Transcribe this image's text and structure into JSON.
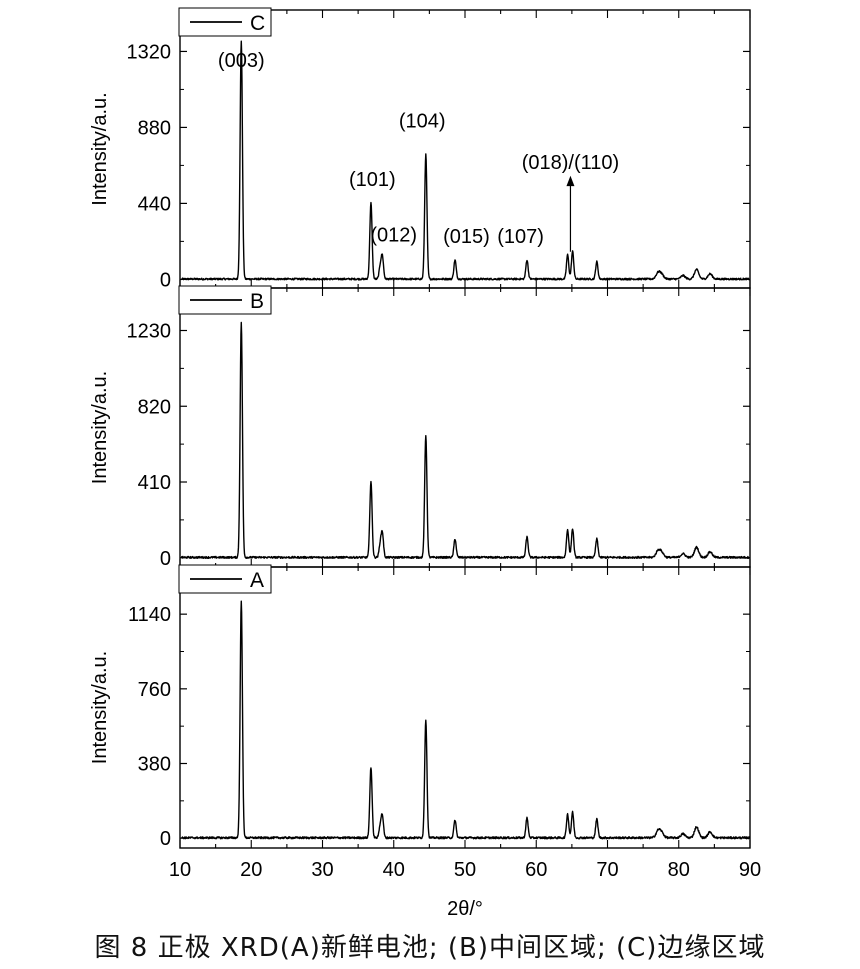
{
  "chart_data": {
    "type": "line",
    "xlabel": "2θ/°",
    "ylabel": "Intensity/a.u.",
    "xlim": [
      10,
      90
    ],
    "xticks": [
      "10",
      "20",
      "30",
      "40",
      "50",
      "60",
      "70",
      "80",
      "90"
    ],
    "legend_position": "top-left",
    "grid": false,
    "color": "#000000",
    "peaks_2theta": [
      18.6,
      36.8,
      38.1,
      38.4,
      44.5,
      48.6,
      58.7,
      64.4,
      65.1,
      68.5,
      77.1,
      77.6,
      80.6,
      82.5,
      84.4
    ],
    "panels": [
      {
        "legend": "C",
        "yticks": [
          "0",
          "440",
          "880",
          "1320"
        ],
        "ylim": [
          -50,
          1560
        ],
        "peak_heights": [
          1380,
          440,
          70,
          130,
          720,
          110,
          110,
          140,
          160,
          100,
          35,
          25,
          20,
          55,
          30
        ],
        "annotations": [
          {
            "text": "(003)",
            "x": 18.6,
            "y": 1230
          },
          {
            "text": "(101)",
            "x": 37.0,
            "y": 540
          },
          {
            "text": "(012)",
            "x": 40.0,
            "y": 220
          },
          {
            "text": "(104)",
            "x": 44.0,
            "y": 880
          },
          {
            "text": "(015)",
            "x": 50.2,
            "y": 210
          },
          {
            "text": "(107)",
            "x": 57.8,
            "y": 210
          },
          {
            "text": "(018)/(110)",
            "x": 64.8,
            "y": 640
          }
        ]
      },
      {
        "legend": "B",
        "yticks": [
          "0",
          "410",
          "820",
          "1230"
        ],
        "ylim": [
          -50,
          1460
        ],
        "peak_heights": [
          1270,
          410,
          70,
          130,
          660,
          100,
          110,
          150,
          155,
          100,
          35,
          25,
          20,
          55,
          30
        ]
      },
      {
        "legend": "A",
        "yticks": [
          "0",
          "380",
          "760",
          "1140"
        ],
        "ylim": [
          -50,
          1380
        ],
        "peak_heights": [
          1200,
          360,
          60,
          110,
          600,
          90,
          100,
          120,
          130,
          95,
          35,
          25,
          20,
          55,
          30
        ]
      }
    ]
  },
  "caption": "图 8  正极 XRD(A)新鲜电池; (B)中间区域; (C)边缘区域"
}
